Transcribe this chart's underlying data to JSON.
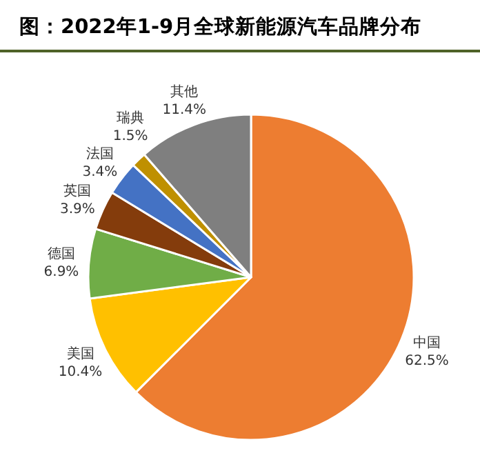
{
  "chart_data": {
    "type": "pie",
    "title": "图：2022年1-9月全球新能源汽车品牌分布",
    "categories": [
      "中国",
      "美国",
      "德国",
      "英国",
      "法国",
      "瑞典",
      "其他"
    ],
    "values": [
      62.5,
      10.4,
      6.9,
      3.9,
      3.4,
      1.5,
      11.4
    ],
    "value_labels": [
      "62.5%",
      "10.4%",
      "6.9%",
      "3.9%",
      "3.4%",
      "1.5%",
      "11.4%"
    ],
    "colors": [
      "#ed7d31",
      "#ffc000",
      "#70ad47",
      "#843c0c",
      "#4472c4",
      "#bf9000",
      "#7f7f7f"
    ]
  }
}
